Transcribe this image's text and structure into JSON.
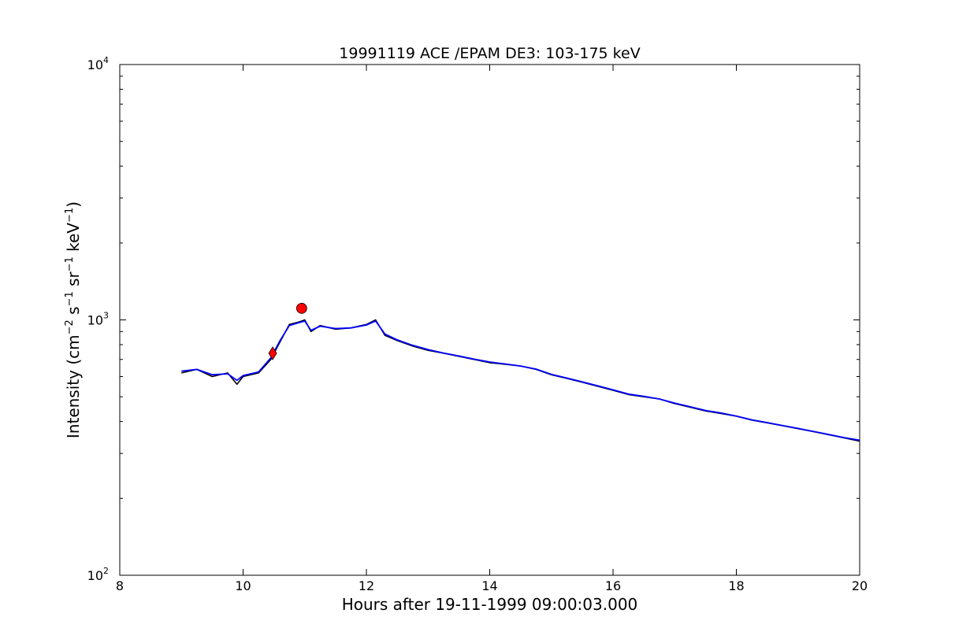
{
  "chart_data": {
    "type": "line",
    "title": "19991119 ACE /EPAM DE3: 103-175 keV",
    "xlabel": "Hours after 19-11-1999 09:00:03.000",
    "ylabel": {
      "prefix": "Intensity (cm",
      "cm_exp": "−2",
      "s": " s",
      "s_exp": "−1",
      "sr": " sr",
      "sr_exp": "−1",
      "kev": " keV",
      "kev_exp": "−1",
      "suffix": ")"
    },
    "xlim": [
      8,
      20
    ],
    "ylim": [
      100,
      10000
    ],
    "yscale": "log",
    "grid": false,
    "x_ticks": [
      "8",
      "10",
      "12",
      "14",
      "16",
      "18",
      "20"
    ],
    "y_ticks": [
      {
        "base": "10",
        "exp": "2"
      },
      {
        "base": "10",
        "exp": "3"
      },
      {
        "base": "10",
        "exp": "4"
      }
    ],
    "series": [
      {
        "color": "#000000",
        "role": "raw",
        "x": [
          9.0,
          9.25,
          9.5,
          9.75,
          9.9,
          10.0,
          10.25,
          10.45,
          10.6,
          10.75,
          10.9,
          11.0,
          11.1,
          11.25,
          11.5,
          11.75,
          12.0,
          12.15,
          12.3,
          12.5,
          12.75,
          13.0,
          13.25,
          13.5,
          13.75,
          14.0,
          14.25,
          14.5,
          14.75,
          15.0,
          15.25,
          15.5,
          15.75,
          16.0,
          16.25,
          16.5,
          16.75,
          17.0,
          17.25,
          17.5,
          17.75,
          18.0,
          18.25,
          18.5,
          18.75,
          19.0,
          19.25,
          19.5,
          19.75,
          20.0
        ],
        "y": [
          620,
          640,
          600,
          620,
          560,
          600,
          620,
          700,
          820,
          960,
          980,
          1000,
          900,
          950,
          920,
          930,
          960,
          1000,
          870,
          830,
          790,
          760,
          740,
          720,
          700,
          680,
          670,
          660,
          640,
          610,
          590,
          570,
          550,
          530,
          510,
          500,
          490,
          470,
          455,
          440,
          430,
          420,
          405,
          395,
          385,
          375,
          365,
          355,
          345,
          335
        ]
      },
      {
        "color": "#0000ff",
        "role": "smoothed",
        "x": [
          9.0,
          9.25,
          9.5,
          9.75,
          9.9,
          10.0,
          10.25,
          10.45,
          10.6,
          10.75,
          10.9,
          11.0,
          11.1,
          11.25,
          11.5,
          11.75,
          12.0,
          12.15,
          12.3,
          12.5,
          12.75,
          13.0,
          13.25,
          13.5,
          13.75,
          14.0,
          14.25,
          14.5,
          14.75,
          15.0,
          15.25,
          15.5,
          15.75,
          16.0,
          16.25,
          16.5,
          16.75,
          17.0,
          17.25,
          17.5,
          17.75,
          18.0,
          18.25,
          18.5,
          18.75,
          19.0,
          19.25,
          19.5,
          19.75,
          20.0
        ],
        "y": [
          630,
          640,
          610,
          615,
          580,
          605,
          625,
          710,
          830,
          950,
          975,
          990,
          910,
          945,
          925,
          930,
          955,
          990,
          880,
          835,
          795,
          765,
          742,
          722,
          702,
          684,
          672,
          660,
          642,
          612,
          592,
          572,
          552,
          532,
          512,
          502,
          490,
          472,
          457,
          442,
          432,
          420,
          406,
          396,
          386,
          376,
          366,
          356,
          346,
          338
        ]
      }
    ],
    "markers": [
      {
        "shape": "diamond",
        "color": "#ff0000",
        "x": 10.48,
        "y": 740
      },
      {
        "shape": "circle",
        "color": "#ff0000",
        "x": 10.95,
        "y": 1110
      }
    ]
  }
}
